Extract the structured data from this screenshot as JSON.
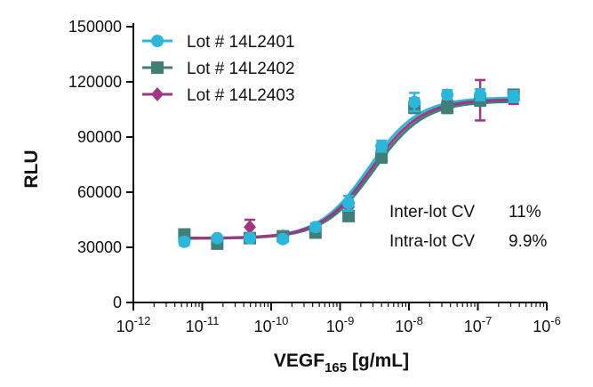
{
  "chart_data": {
    "type": "scatter",
    "x_scale": "log",
    "xlim": [
      1e-12,
      1e-06
    ],
    "ylim": [
      0,
      150000
    ],
    "xlabel": {
      "main": "VEGF",
      "sub": "165",
      "tail": " [g/mL]"
    },
    "ylabel": "RLU",
    "y_ticks": [
      0,
      30000,
      60000,
      90000,
      120000,
      150000
    ],
    "y_tick_labels": [
      "0",
      "30000",
      "60000",
      "90000",
      "120000",
      "150000"
    ],
    "x_tick_exponents": [
      -12,
      -11,
      -10,
      -9,
      -8,
      -7,
      -6
    ],
    "x_tick_exponent_labels": [
      "-12",
      "-11",
      "-10",
      "-9",
      "-8",
      "-7",
      "-6"
    ],
    "x_tick_base": "10",
    "legend_position": "top-left",
    "series": [
      {
        "name": "Lot # 14L2401",
        "color": "#2bb7dc",
        "marker": "circle",
        "x": [
          5.5e-12,
          1.65e-11,
          4.9e-11,
          1.48e-10,
          4.4e-10,
          1.33e-09,
          4e-09,
          1.2e-08,
          3.6e-08,
          1.08e-07,
          3.3e-07
        ],
        "y": [
          33000,
          35000,
          35000,
          34500,
          41000,
          54000,
          85000,
          109000,
          113000,
          113000,
          112000
        ],
        "err": [
          2000,
          1000,
          1500,
          1500,
          2000,
          4000,
          3000,
          5000,
          2500,
          3000,
          3000
        ]
      },
      {
        "name": "Lot # 14L2402",
        "color": "#3f7f78",
        "marker": "square",
        "x": [
          5.5e-12,
          1.65e-11,
          4.9e-11,
          1.48e-10,
          4.4e-10,
          1.33e-09,
          4e-09,
          1.2e-08,
          3.6e-08,
          1.08e-07,
          3.3e-07
        ],
        "y": [
          37000,
          32000,
          35000,
          36000,
          38000,
          47000,
          79000,
          106000,
          106000,
          110000,
          113000
        ],
        "err": [
          1500,
          2000,
          1500,
          1500,
          2000,
          2500,
          3000,
          3000,
          3000,
          3000,
          2500
        ]
      },
      {
        "name": "Lot # 14L2403",
        "color": "#a0367f",
        "marker": "diamond",
        "x": [
          5.5e-12,
          1.65e-11,
          4.9e-11,
          1.48e-10,
          4.4e-10,
          1.33e-09,
          4e-09,
          1.2e-08,
          3.6e-08,
          1.08e-07,
          3.3e-07
        ],
        "y": [
          34000,
          34000,
          41000,
          36000,
          40000,
          52000,
          83000,
          108000,
          110000,
          110000,
          111000
        ],
        "err": [
          1500,
          1500,
          4000,
          2000,
          2000,
          3000,
          3000,
          3000,
          3000,
          11000,
          3000
        ]
      }
    ],
    "fit_curves": [
      {
        "series": "Lot # 14L2401",
        "bottom": 34800,
        "top": 111500,
        "ec50": 2.6e-09,
        "hill": 1.2,
        "color": "#2bb7dc"
      },
      {
        "series": "Lot # 14L2402",
        "bottom": 34800,
        "top": 109500,
        "ec50": 3.1e-09,
        "hill": 1.2,
        "color": "#3f7f78"
      },
      {
        "series": "Lot # 14L2403",
        "bottom": 35000,
        "top": 110500,
        "ec50": 2.85e-09,
        "hill": 1.2,
        "color": "#a0367f"
      }
    ],
    "annotations": [
      {
        "label": "Inter-lot CV",
        "value": "11%"
      },
      {
        "label": "Intra-lot CV",
        "value": "9.9%"
      }
    ]
  }
}
